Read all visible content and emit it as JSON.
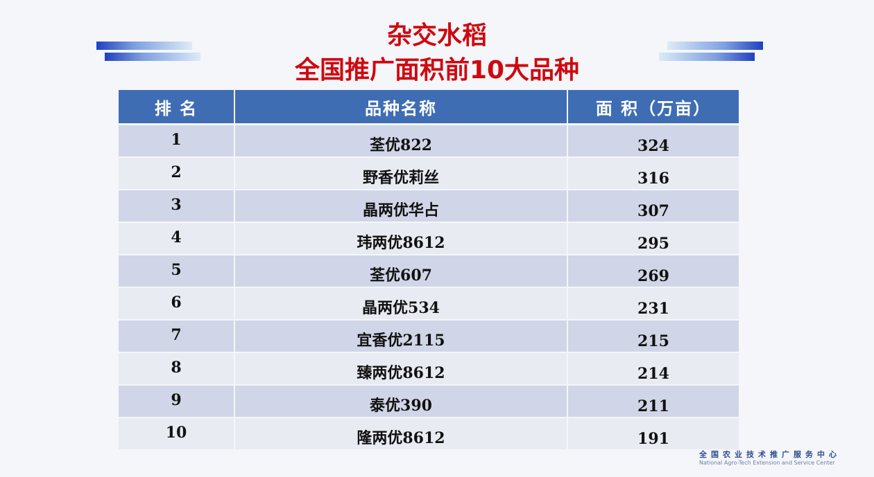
{
  "title": {
    "line1": "杂交水稻",
    "line2": "全国推广面积前10大品种"
  },
  "table": {
    "headers": [
      "排 名",
      "品种名称",
      "面 积（万亩）"
    ],
    "rows": [
      {
        "rank": "1",
        "name": "荃优822",
        "area": "324"
      },
      {
        "rank": "2",
        "name": "野香优莉丝",
        "area": "316"
      },
      {
        "rank": "3",
        "name": "晶两优华占",
        "area": "307"
      },
      {
        "rank": "4",
        "name": "玮两优8612",
        "area": "295"
      },
      {
        "rank": "5",
        "name": "荃优607",
        "area": "269"
      },
      {
        "rank": "6",
        "name": "晶两优534",
        "area": "231"
      },
      {
        "rank": "7",
        "name": "宜香优2115",
        "area": "215"
      },
      {
        "rank": "8",
        "name": "臻两优8612",
        "area": "214"
      },
      {
        "rank": "9",
        "name": "泰优390",
        "area": "211"
      },
      {
        "rank": "10",
        "name": "隆两优8612",
        "area": "191"
      }
    ]
  },
  "footer": {
    "cn": "全国农业技术推广服务中心",
    "en": "National Agro-Tech Extension and Service Center"
  },
  "colors": {
    "title": "#d0080f",
    "header": "#3f6db4"
  }
}
